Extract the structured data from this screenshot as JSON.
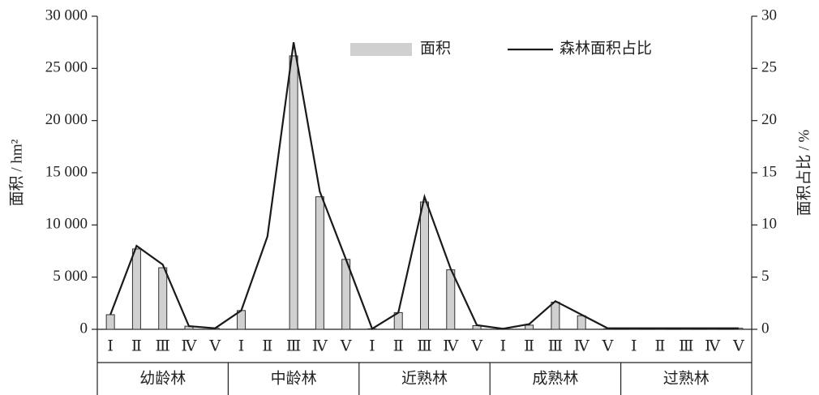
{
  "chart_data": {
    "type": "bar_line",
    "categories": [
      "Ⅰ",
      "Ⅱ",
      "Ⅲ",
      "Ⅳ",
      "Ⅴ",
      "Ⅰ",
      "Ⅱ",
      "Ⅲ",
      "Ⅳ",
      "Ⅴ",
      "Ⅰ",
      "Ⅱ",
      "Ⅲ",
      "Ⅳ",
      "Ⅴ",
      "Ⅰ",
      "Ⅱ",
      "Ⅲ",
      "Ⅳ",
      "Ⅴ",
      "Ⅰ",
      "Ⅱ",
      "Ⅲ",
      "Ⅳ",
      "Ⅴ"
    ],
    "groups": [
      "幼龄林",
      "中龄林",
      "近熟林",
      "成熟林",
      "过熟林"
    ],
    "ylabel": "面积 / hm²",
    "y2label": "面积占比 / %",
    "ylim": [
      0,
      30000
    ],
    "yticks": [
      0,
      {
        "value": 5000,
        "label": "5 000"
      },
      {
        "value": 10000,
        "label": "10 000"
      },
      {
        "value": 15000,
        "label": "15 000"
      },
      {
        "value": 20000,
        "label": "20 000"
      },
      {
        "value": 25000,
        "label": "25 000"
      },
      {
        "value": 30000,
        "label": "30 000"
      }
    ],
    "y2lim": [
      0,
      30
    ],
    "y2ticks": [
      0,
      5,
      10,
      15,
      20,
      25,
      30
    ],
    "series": [
      {
        "name": "面积",
        "type": "bar",
        "color": "#d0d0d0",
        "values": [
          1400,
          7700,
          5900,
          300,
          100,
          1800,
          0,
          26200,
          12700,
          6700,
          50,
          1600,
          12200,
          5700,
          350,
          50,
          400,
          2600,
          1300,
          50,
          100,
          100,
          100,
          100,
          100
        ]
      },
      {
        "name": "森林面积占比",
        "type": "line",
        "axis": "y2",
        "color": "#1a1a1a",
        "values": [
          1.4,
          8.0,
          6.2,
          0.3,
          0.1,
          1.8,
          8.9,
          27.5,
          13.2,
          6.7,
          0.05,
          1.6,
          12.7,
          5.8,
          0.4,
          0.05,
          0.5,
          2.7,
          1.4,
          0.1,
          0.1,
          0.1,
          0.1,
          0.1,
          0.1
        ]
      }
    ]
  }
}
